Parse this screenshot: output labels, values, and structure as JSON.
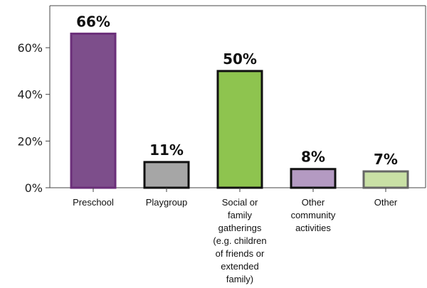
{
  "chart_data": {
    "type": "bar",
    "categories": [
      [
        "Preschool"
      ],
      [
        "Playgroup"
      ],
      [
        "Social or",
        "family",
        "gatherings",
        "(e.g. children",
        "of friends or",
        "extended",
        "family)"
      ],
      [
        "Other",
        "community",
        "activities"
      ],
      [
        "Other"
      ]
    ],
    "values": [
      66,
      11,
      50,
      8,
      7
    ],
    "value_labels": [
      "66%",
      "11%",
      "50%",
      "8%",
      "7%"
    ],
    "bar_colors": [
      "#7d4e8b",
      "#a6a6a6",
      "#8ec44f",
      "#b49ac2",
      "#c9e0a5"
    ],
    "bar_borders": [
      "#6b2f7a",
      "#111111",
      "#111111",
      "#111111",
      "#666666"
    ],
    "yticks": [
      0,
      20,
      40,
      60
    ],
    "ytick_labels": [
      "0%",
      "20%",
      "40%",
      "60%"
    ],
    "ylim": [
      0,
      78
    ],
    "xlabel": "",
    "ylabel": "",
    "title": "",
    "grid": false,
    "legend": "none"
  }
}
